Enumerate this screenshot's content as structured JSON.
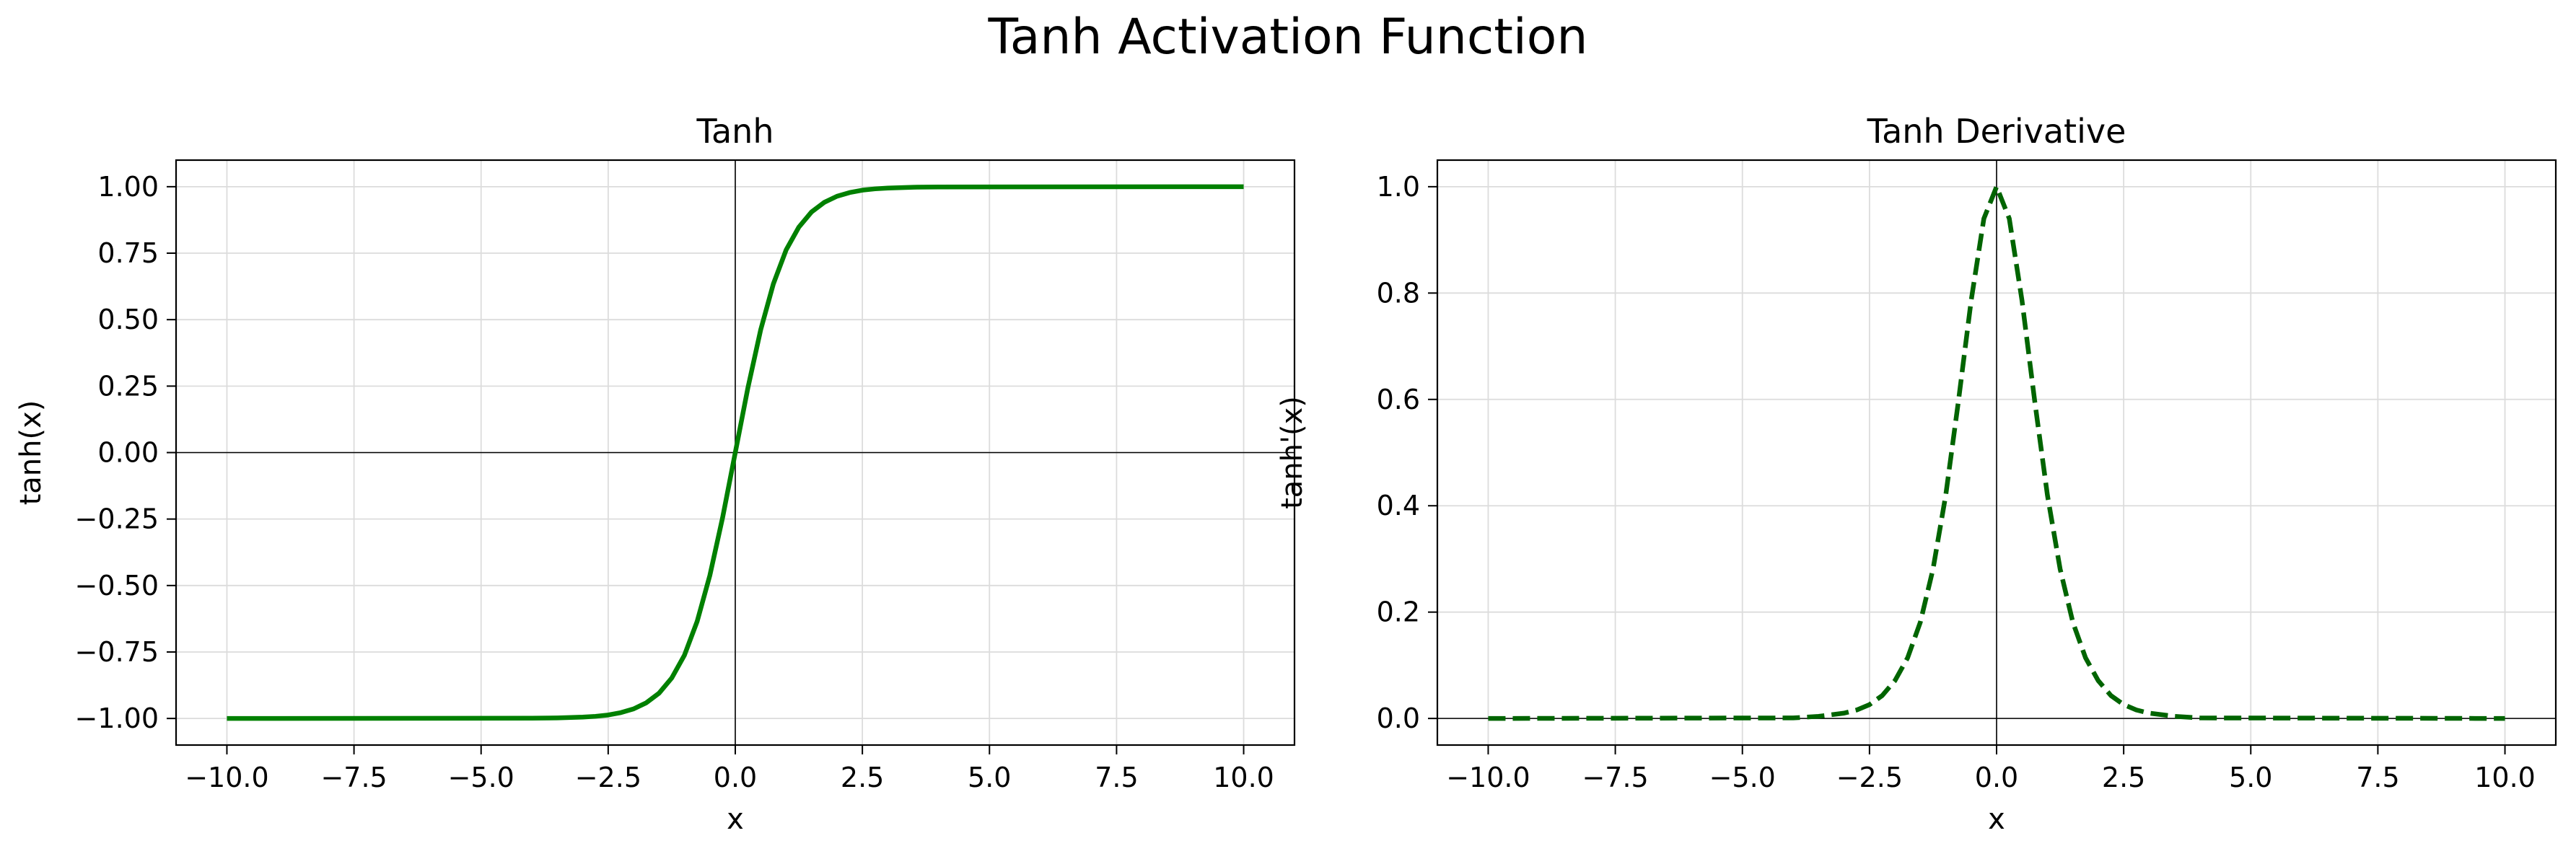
{
  "figure": {
    "suptitle": "Tanh Activation Function"
  },
  "chart_data": [
    {
      "type": "line",
      "title": "Tanh",
      "xlabel": "x",
      "ylabel": "tanh(x)",
      "xlim": [
        -11,
        11
      ],
      "ylim": [
        -1.1,
        1.1
      ],
      "grid": true,
      "reference_lines": {
        "x": 0,
        "y": 0
      },
      "x_ticks": [
        -10,
        -7.5,
        -5,
        -2.5,
        0,
        2.5,
        5,
        7.5,
        10
      ],
      "x_tick_labels": [
        "−10.0",
        "−7.5",
        "−5.0",
        "−2.5",
        "0.0",
        "2.5",
        "5.0",
        "7.5",
        "10.0"
      ],
      "y_ticks": [
        -1,
        -0.75,
        -0.5,
        -0.25,
        0,
        0.25,
        0.5,
        0.75,
        1
      ],
      "y_tick_labels": [
        "−1.00",
        "−0.75",
        "−0.50",
        "−0.25",
        "0.00",
        "0.25",
        "0.50",
        "0.75",
        "1.00"
      ],
      "series": [
        {
          "line_style": "solid",
          "color": "#008000",
          "x": [
            -10,
            -4,
            -3.5,
            -3,
            -2.75,
            -2.5,
            -2.25,
            -2,
            -1.75,
            -1.5,
            -1.25,
            -1,
            -0.75,
            -0.5,
            -0.25,
            0,
            0.25,
            0.5,
            0.75,
            1,
            1.25,
            1.5,
            1.75,
            2,
            2.25,
            2.5,
            2.75,
            3,
            3.5,
            4,
            10
          ],
          "y": [
            -1.0,
            -0.999,
            -0.998,
            -0.995,
            -0.992,
            -0.987,
            -0.978,
            -0.964,
            -0.941,
            -0.905,
            -0.848,
            -0.762,
            -0.635,
            -0.462,
            -0.245,
            0.0,
            0.245,
            0.462,
            0.635,
            0.762,
            0.848,
            0.905,
            0.941,
            0.964,
            0.978,
            0.987,
            0.992,
            0.995,
            0.998,
            0.999,
            1.0
          ]
        }
      ]
    },
    {
      "type": "line",
      "title": "Tanh Derivative",
      "xlabel": "x",
      "ylabel": "tanh'(x)",
      "xlim": [
        -11,
        11
      ],
      "ylim": [
        -0.05,
        1.05
      ],
      "grid": true,
      "reference_lines": {
        "x": 0,
        "y": 0
      },
      "x_ticks": [
        -10,
        -7.5,
        -5,
        -2.5,
        0,
        2.5,
        5,
        7.5,
        10
      ],
      "x_tick_labels": [
        "−10.0",
        "−7.5",
        "−5.0",
        "−2.5",
        "0.0",
        "2.5",
        "5.0",
        "7.5",
        "10.0"
      ],
      "y_ticks": [
        0,
        0.2,
        0.4,
        0.6,
        0.8,
        1.0
      ],
      "y_tick_labels": [
        "0.0",
        "0.2",
        "0.4",
        "0.6",
        "0.8",
        "1.0"
      ],
      "series": [
        {
          "line_style": "dashed",
          "color": "#006400",
          "x": [
            -10,
            -4,
            -3.5,
            -3,
            -2.75,
            -2.5,
            -2.25,
            -2,
            -1.75,
            -1.5,
            -1.25,
            -1,
            -0.75,
            -0.5,
            -0.25,
            0,
            0.25,
            0.5,
            0.75,
            1,
            1.25,
            1.5,
            1.75,
            2,
            2.25,
            2.5,
            2.75,
            3,
            3.5,
            4,
            10
          ],
          "y": [
            0.0,
            0.001,
            0.004,
            0.01,
            0.016,
            0.026,
            0.043,
            0.071,
            0.114,
            0.181,
            0.281,
            0.42,
            0.597,
            0.786,
            0.94,
            1.0,
            0.94,
            0.786,
            0.597,
            0.42,
            0.281,
            0.181,
            0.114,
            0.071,
            0.043,
            0.026,
            0.016,
            0.01,
            0.004,
            0.001,
            0.0
          ]
        }
      ]
    }
  ]
}
